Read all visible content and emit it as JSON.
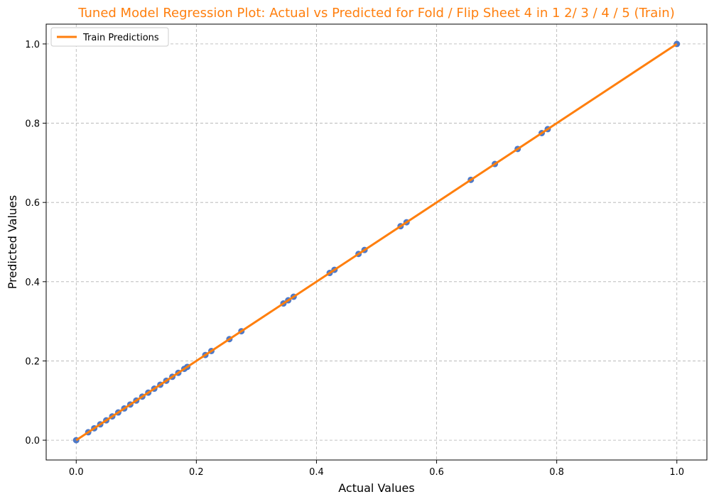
{
  "chart_data": {
    "type": "scatter",
    "title": "Tuned Model Regression Plot: Actual vs Predicted for Fold / Flip Sheet 4 in 1 2/ 3 / 4 / 5 (Train)",
    "xlabel": "Actual Values",
    "ylabel": "Predicted Values",
    "xlim": [
      -0.05,
      1.05
    ],
    "ylim": [
      -0.05,
      1.05
    ],
    "xticks": [
      0.0,
      0.2,
      0.4,
      0.6,
      0.8,
      1.0
    ],
    "yticks": [
      0.0,
      0.2,
      0.4,
      0.6,
      0.8,
      1.0
    ],
    "xtick_labels": [
      "0.0",
      "0.2",
      "0.4",
      "0.6",
      "0.8",
      "1.0"
    ],
    "ytick_labels": [
      "0.0",
      "0.2",
      "0.4",
      "0.6",
      "0.8",
      "1.0"
    ],
    "grid": true,
    "legend_position": "top-left",
    "legend": [
      "Train Predictions"
    ],
    "colors": {
      "title": "#ff7f0e",
      "points": "#4472c4",
      "line": "#ff7f0e",
      "grid": "#b0b0b0"
    },
    "series": [
      {
        "kind": "scatter",
        "x": [
          0.0,
          0.02,
          0.03,
          0.04,
          0.05,
          0.06,
          0.07,
          0.08,
          0.09,
          0.1,
          0.11,
          0.12,
          0.13,
          0.14,
          0.15,
          0.16,
          0.17,
          0.18,
          0.185,
          0.215,
          0.225,
          0.255,
          0.275,
          0.345,
          0.353,
          0.362,
          0.422,
          0.43,
          0.47,
          0.48,
          0.54,
          0.55,
          0.657,
          0.697,
          0.735,
          0.775,
          0.785,
          1.0
        ],
        "y": [
          0.0,
          0.02,
          0.03,
          0.04,
          0.05,
          0.06,
          0.07,
          0.08,
          0.09,
          0.1,
          0.11,
          0.12,
          0.13,
          0.14,
          0.15,
          0.16,
          0.17,
          0.18,
          0.185,
          0.215,
          0.225,
          0.255,
          0.275,
          0.345,
          0.353,
          0.362,
          0.422,
          0.43,
          0.47,
          0.48,
          0.54,
          0.55,
          0.657,
          0.697,
          0.735,
          0.775,
          0.785,
          1.0
        ]
      },
      {
        "kind": "line",
        "name": "Train Predictions",
        "x": [
          0.0,
          1.0
        ],
        "y": [
          0.0,
          1.0
        ]
      }
    ]
  }
}
